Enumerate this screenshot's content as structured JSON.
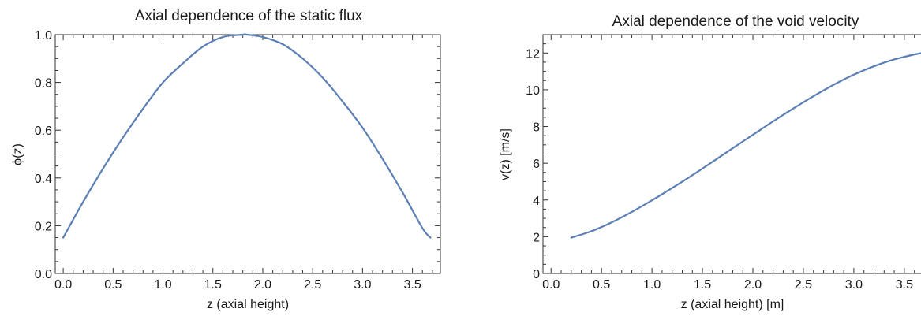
{
  "chart_data": [
    {
      "type": "line",
      "title": "Axial dependence of the static flux",
      "xlabel": "z (axial height)",
      "ylabel": "ϕ(z)",
      "xlim": [
        -0.08,
        3.78
      ],
      "ylim": [
        0,
        1.0
      ],
      "xticks": [
        0.0,
        0.5,
        1.0,
        1.5,
        2.0,
        2.5,
        3.0,
        3.5
      ],
      "xtick_labels": [
        "0.0",
        "0.5",
        "1.0",
        "1.5",
        "2.0",
        "2.5",
        "3.0",
        "3.5"
      ],
      "yticks": [
        0.0,
        0.2,
        0.4,
        0.6,
        0.8,
        1.0
      ],
      "ytick_labels": [
        "0.0",
        "0.2",
        "0.4",
        "0.6",
        "0.8",
        "1.0"
      ],
      "color": "#5b7fb5",
      "series": [
        {
          "x": [
            0.0,
            0.2,
            0.4,
            0.6,
            0.8,
            1.0,
            1.2,
            1.4,
            1.6,
            1.8,
            1.84,
            2.0,
            2.2,
            2.4,
            2.6,
            2.8,
            3.0,
            3.2,
            3.4,
            3.6,
            3.68
          ],
          "y": [
            0.15,
            0.3,
            0.44,
            0.57,
            0.69,
            0.8,
            0.88,
            0.95,
            0.99,
            1.0,
            1.0,
            0.99,
            0.96,
            0.9,
            0.82,
            0.72,
            0.61,
            0.48,
            0.34,
            0.19,
            0.15
          ]
        }
      ]
    },
    {
      "type": "line",
      "title": "Axial dependence of the void velocity",
      "xlabel": "z (axial height)   [m]",
      "ylabel": "v(z)  [m/s]",
      "xlim": [
        -0.08,
        3.72
      ],
      "ylim": [
        0,
        13
      ],
      "xticks": [
        0.0,
        0.5,
        1.0,
        1.5,
        2.0,
        2.5,
        3.0,
        3.5
      ],
      "xtick_labels": [
        "0.0",
        "0.5",
        "1.0",
        "1.5",
        "2.0",
        "2.5",
        "3.0",
        "3.5"
      ],
      "yticks": [
        0,
        2,
        4,
        6,
        8,
        10,
        12
      ],
      "ytick_labels": [
        "0",
        "2",
        "4",
        "6",
        "8",
        "10",
        "12"
      ],
      "color": "#5b7fb5",
      "series": [
        {
          "x": [
            0.2,
            0.4,
            0.6,
            0.8,
            1.0,
            1.2,
            1.4,
            1.6,
            1.8,
            2.0,
            2.2,
            2.4,
            2.6,
            2.8,
            3.0,
            3.2,
            3.4,
            3.6,
            3.72
          ],
          "y": [
            1.95,
            2.3,
            2.78,
            3.35,
            3.98,
            4.65,
            5.35,
            6.08,
            6.82,
            7.55,
            8.28,
            8.98,
            9.65,
            10.27,
            10.82,
            11.28,
            11.65,
            11.92,
            12.05
          ]
        }
      ]
    }
  ]
}
